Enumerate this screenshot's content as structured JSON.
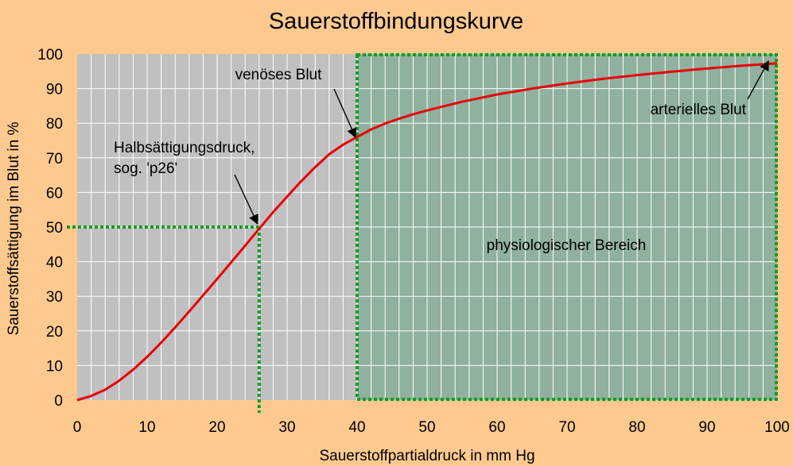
{
  "chart_data": {
    "type": "line",
    "title": "Sauerstoffbindungskurve",
    "xlabel": "Sauerstoffpartialdruck in mm Hg",
    "ylabel": "Sauerstoffsättigung im Blut in %",
    "xlim": [
      0,
      100
    ],
    "ylim": [
      0,
      100
    ],
    "x_ticks": [
      0,
      10,
      20,
      30,
      40,
      50,
      60,
      70,
      80,
      90,
      100
    ],
    "y_ticks": [
      0,
      10,
      20,
      30,
      40,
      50,
      60,
      70,
      80,
      90,
      100
    ],
    "grid": true,
    "series": [
      {
        "color": "#e8000b",
        "x": [
          0,
          2,
          4,
          6,
          8,
          10,
          12,
          14,
          16,
          18,
          20,
          22,
          24,
          26,
          28,
          30,
          32,
          34,
          36,
          38,
          40,
          42,
          44,
          46,
          48,
          50,
          55,
          60,
          65,
          70,
          75,
          80,
          85,
          90,
          95,
          100
        ],
        "y": [
          0,
          1.2,
          3.0,
          5.6,
          8.8,
          12.5,
          16.6,
          21.0,
          25.6,
          30.3,
          35.0,
          39.8,
          44.6,
          49.5,
          54.3,
          58.8,
          63.2,
          67.3,
          71.0,
          73.8,
          76.0,
          78.2,
          79.9,
          81.3,
          82.6,
          83.7,
          86.2,
          88.3,
          90.0,
          91.5,
          92.8,
          93.9,
          94.9,
          95.8,
          96.6,
          97.3
        ]
      }
    ],
    "reference_lines": {
      "p50_x": 26,
      "p50_y": 50,
      "color": "#159b25"
    },
    "region": {
      "label": "physiologischer Bereich",
      "x_start": 40,
      "x_end": 100,
      "y_start": 0,
      "y_end": 100,
      "color": "#159b25"
    },
    "annotations": [
      {
        "lines": [
          "venöses Blut"
        ],
        "target": [
          40,
          75
        ]
      },
      {
        "lines": [
          "Halbsättigungsdruck,",
          "sog. 'p26'"
        ],
        "target": [
          26,
          50
        ]
      },
      {
        "lines": [
          "arterielles Blut"
        ],
        "target": [
          99,
          97
        ]
      }
    ],
    "colors": {
      "background": "#fdc98f",
      "plot_area": "#c0c0c0",
      "region_fill": "#8fb19e",
      "grid": "#ffffff",
      "curve": "#e8000b",
      "dotted": "#159b25"
    }
  }
}
